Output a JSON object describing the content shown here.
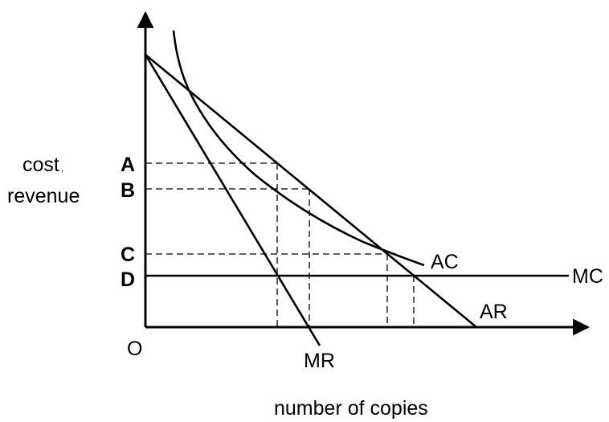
{
  "diagram": {
    "y_axis_label": {
      "line1": "cost",
      "line1_mark": ",",
      "line2": "revenue"
    },
    "x_axis_label": "number of copies",
    "origin_label": "O",
    "price_levels": [
      "A",
      "B",
      "C",
      "D"
    ],
    "curves": {
      "average_cost": "AC",
      "marginal_cost": "MC",
      "average_revenue": "AR",
      "marginal_revenue": "MR"
    },
    "colors": {
      "ink": "#000000",
      "background": "#ffffff"
    }
  }
}
